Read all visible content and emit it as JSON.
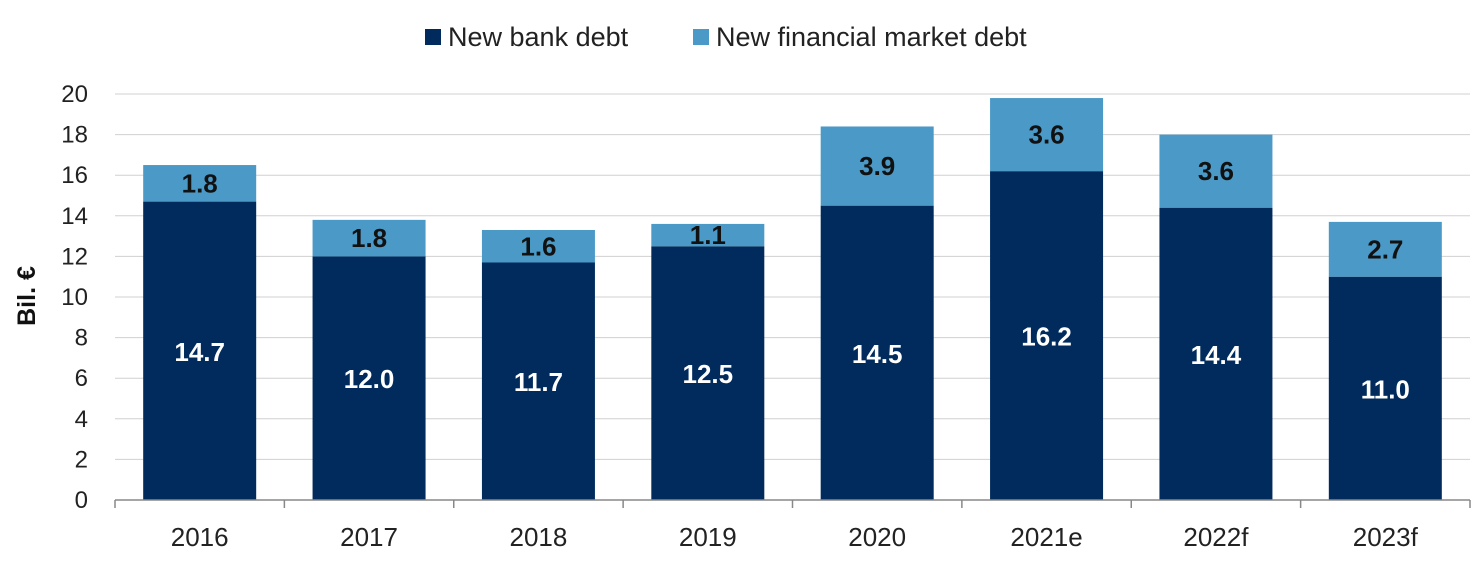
{
  "colors": {
    "bank": "#002b5c",
    "market": "#4a99c6",
    "grid": "#d0d0d0",
    "axis": "#888888",
    "label_on_dark": "#ffffff",
    "label_on_light": "#111111"
  },
  "chart_data": {
    "type": "bar",
    "stacked": true,
    "categories": [
      "2016",
      "2017",
      "2018",
      "2019",
      "2020",
      "2021e",
      "2022f",
      "2023f"
    ],
    "series": [
      {
        "name": "New bank debt",
        "values": [
          14.7,
          12.0,
          11.7,
          12.5,
          14.5,
          16.2,
          14.4,
          11.0
        ]
      },
      {
        "name": "New financial market debt",
        "values": [
          1.8,
          1.8,
          1.6,
          1.1,
          3.9,
          3.6,
          3.6,
          2.7
        ]
      }
    ],
    "ylabel": "Bil. €",
    "ylim": [
      0,
      20
    ],
    "yticks": [
      0,
      2,
      4,
      6,
      8,
      10,
      12,
      14,
      16,
      18,
      20
    ],
    "grid": true,
    "legend_position": "top-center"
  }
}
